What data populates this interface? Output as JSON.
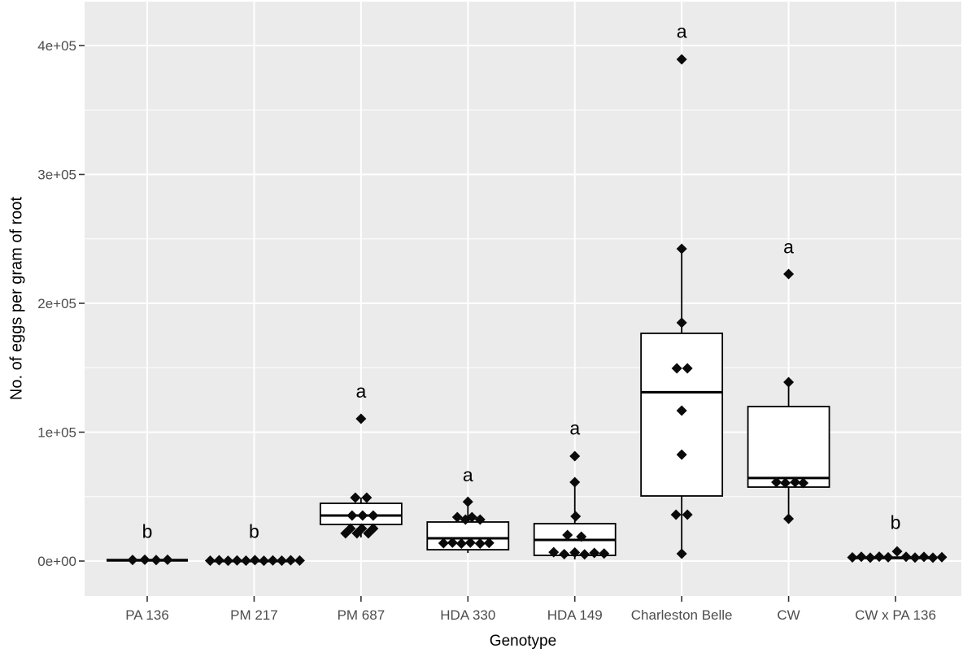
{
  "figure": {
    "kind": "ggplot-style boxplot with jittered points",
    "background": "#FFFFFF"
  },
  "chart_data": {
    "type": "boxplot",
    "title": "",
    "xlabel": "Genotype",
    "ylabel": "No. of eggs per gram of root",
    "ylim": [
      -27000,
      434000
    ],
    "grid": {
      "major": true,
      "minor": true,
      "vertical_major_at_categories": true
    },
    "legend": "none",
    "panel_bg": "#EBEBEB",
    "grid_color": "#FFFFFF",
    "axis_text_color": "#4D4D4D",
    "tick_color": "#333333",
    "box_stroke": "#000000",
    "box_fill": "#FFFFFF",
    "point_color": "#0A0A0A",
    "y_ticks": [
      {
        "label": "0e+00",
        "value": 0
      },
      {
        "label": "1e+05",
        "value": 100000
      },
      {
        "label": "2e+05",
        "value": 200000
      },
      {
        "label": "3e+05",
        "value": 300000
      },
      {
        "label": "4e+05",
        "value": 400000
      }
    ],
    "categories": [
      {
        "label": "PA 136",
        "letter": "b",
        "letter_value": 23000,
        "box": {
          "whisker_low": 600,
          "q1": 600,
          "median": 600,
          "q3": 600,
          "whisker_high": 600
        },
        "points": [
          {
            "dx": -18,
            "value": 900
          },
          {
            "dx": -3,
            "value": 1000
          },
          {
            "dx": 11,
            "value": 800
          },
          {
            "dx": 25,
            "value": 1000
          }
        ]
      },
      {
        "label": "PM 217",
        "letter": "b",
        "letter_value": 23000,
        "box": {
          "whisker_low": 100,
          "q1": 100,
          "median": 100,
          "q3": 100,
          "whisker_high": 100
        },
        "points": [
          {
            "dx": -54,
            "value": 300
          },
          {
            "dx": -43,
            "value": 600
          },
          {
            "dx": -32,
            "value": 200
          },
          {
            "dx": -21,
            "value": 500
          },
          {
            "dx": -10,
            "value": 300
          },
          {
            "dx": 1,
            "value": 700
          },
          {
            "dx": 12,
            "value": 200
          },
          {
            "dx": 23,
            "value": 500
          },
          {
            "dx": 34,
            "value": 300
          },
          {
            "dx": 45,
            "value": 600
          },
          {
            "dx": 56,
            "value": 400
          }
        ]
      },
      {
        "label": "PM 687",
        "letter": "a",
        "letter_value": 132000,
        "box": {
          "whisker_low": 18300,
          "q1": 28400,
          "median": 35300,
          "q3": 44800,
          "whisker_high": 49200
        },
        "points": [
          {
            "dx": 0,
            "value": 110400
          },
          {
            "dx": -7,
            "value": 49200
          },
          {
            "dx": 7,
            "value": 49200
          },
          {
            "dx": -11,
            "value": 35300
          },
          {
            "dx": 2,
            "value": 35300
          },
          {
            "dx": 15,
            "value": 35300
          },
          {
            "dx": -13,
            "value": 25200
          },
          {
            "dx": 1,
            "value": 25200
          },
          {
            "dx": 15,
            "value": 25200
          },
          {
            "dx": -19,
            "value": 21500
          },
          {
            "dx": -5,
            "value": 21500
          },
          {
            "dx": 9,
            "value": 21500
          }
        ]
      },
      {
        "label": "HDA 330",
        "letter": "a",
        "letter_value": 67000,
        "box": {
          "whisker_low": 6300,
          "q1": 8800,
          "median": 17700,
          "q3": 30300,
          "whisker_high": 46000
        },
        "points": [
          {
            "dx": 0,
            "value": 46000
          },
          {
            "dx": -13,
            "value": 34100
          },
          {
            "dx": -3,
            "value": 32200
          },
          {
            "dx": 5,
            "value": 34100
          },
          {
            "dx": 15,
            "value": 32200
          },
          {
            "dx": -30,
            "value": 13900
          },
          {
            "dx": -19,
            "value": 14300
          },
          {
            "dx": -8,
            "value": 13600
          },
          {
            "dx": 3,
            "value": 14300
          },
          {
            "dx": 15,
            "value": 13600
          },
          {
            "dx": 26,
            "value": 14000
          }
        ]
      },
      {
        "label": "HDA 149",
        "letter": "a",
        "letter_value": 103000,
        "box": {
          "whisker_low": 1300,
          "q1": 4400,
          "median": 16400,
          "q3": 29000,
          "whisker_high": 61200
        },
        "points": [
          {
            "dx": 0,
            "value": 81400
          },
          {
            "dx": 0,
            "value": 61200
          },
          {
            "dx": 1,
            "value": 34700
          },
          {
            "dx": -9,
            "value": 20200
          },
          {
            "dx": 8,
            "value": 18900
          },
          {
            "dx": -26,
            "value": 6900
          },
          {
            "dx": -13,
            "value": 5400
          },
          {
            "dx": 0,
            "value": 6600
          },
          {
            "dx": 12,
            "value": 5200
          },
          {
            "dx": 24,
            "value": 6300
          },
          {
            "dx": 36,
            "value": 5800
          }
        ]
      },
      {
        "label": "Charleston Belle",
        "letter": "a",
        "letter_value": 411000,
        "box": {
          "whisker_low": 5700,
          "q1": 50500,
          "median": 131000,
          "q3": 176700,
          "whisker_high": 242300
        },
        "points": [
          {
            "dx": 0,
            "value": 389300
          },
          {
            "dx": 0,
            "value": 242300
          },
          {
            "dx": 0,
            "value": 184900
          },
          {
            "dx": -6,
            "value": 149500
          },
          {
            "dx": 7,
            "value": 149500
          },
          {
            "dx": 0,
            "value": 116700
          },
          {
            "dx": 0,
            "value": 82600
          },
          {
            "dx": -7,
            "value": 36000
          },
          {
            "dx": 7,
            "value": 36000
          },
          {
            "dx": 0,
            "value": 5700
          }
        ]
      },
      {
        "label": "CW",
        "letter": "a",
        "letter_value": 244000,
        "box": {
          "whisker_low": 32800,
          "q1": 57400,
          "median": 64400,
          "q3": 119900,
          "whisker_high": 138800
        },
        "points": [
          {
            "dx": 0,
            "value": 222700
          },
          {
            "dx": 0,
            "value": 138800
          },
          {
            "dx": -15,
            "value": 61200
          },
          {
            "dx": -4,
            "value": 60600
          },
          {
            "dx": 8,
            "value": 61200
          },
          {
            "dx": 18,
            "value": 60600
          },
          {
            "dx": 0,
            "value": 32800
          }
        ]
      },
      {
        "label": "CW x PA 136",
        "letter": "b",
        "letter_value": 30000,
        "box": {
          "whisker_low": 2500,
          "q1": 2500,
          "median": 2500,
          "q3": 2500,
          "whisker_high": 2500
        },
        "points": [
          {
            "dx": -53,
            "value": 2800
          },
          {
            "dx": -42,
            "value": 3300
          },
          {
            "dx": -31,
            "value": 2600
          },
          {
            "dx": -20,
            "value": 3400
          },
          {
            "dx": -9,
            "value": 2900
          },
          {
            "dx": 2,
            "value": 7500
          },
          {
            "dx": 13,
            "value": 3300
          },
          {
            "dx": 24,
            "value": 2700
          },
          {
            "dx": 35,
            "value": 3200
          },
          {
            "dx": 46,
            "value": 2600
          },
          {
            "dx": 57,
            "value": 3000
          }
        ]
      }
    ]
  }
}
